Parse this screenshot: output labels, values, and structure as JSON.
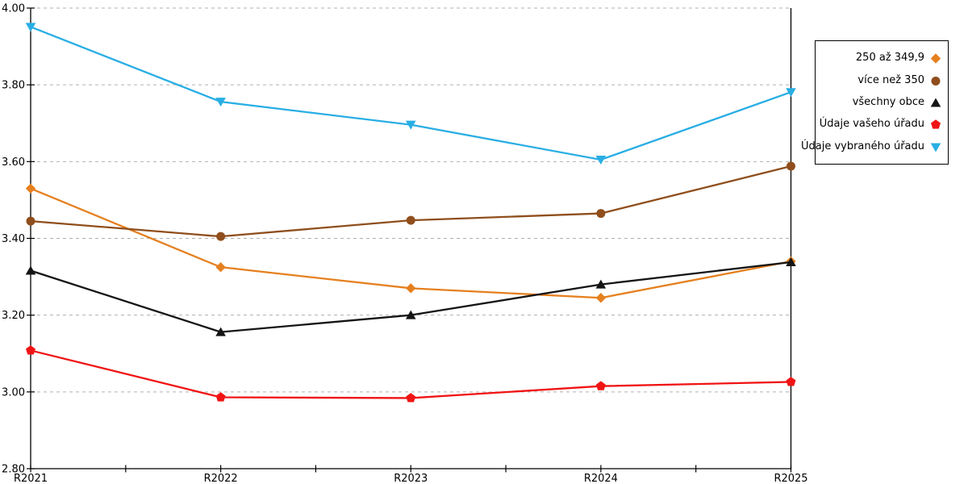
{
  "chart_data": {
    "type": "line",
    "title": "",
    "xlabel": "",
    "ylabel": "",
    "categories": [
      "R2021",
      "R2022",
      "R2023",
      "R2024",
      "R2025"
    ],
    "y_ticks": [
      "4.00",
      "3.80",
      "3.60",
      "3.40",
      "3.20",
      "3.00",
      "2.80"
    ],
    "ylim": [
      2.8,
      4.0
    ],
    "grid": "horizontal-dashed",
    "legend_position": "right-outside",
    "series": [
      {
        "name": "250 až 349,9",
        "marker": "diamond",
        "color": "#E5801F",
        "values": [
          3.53,
          3.325,
          3.27,
          3.245,
          3.34
        ]
      },
      {
        "name": "více než 350",
        "marker": "circle",
        "color": "#8F4E1C",
        "values": [
          3.445,
          3.405,
          3.447,
          3.465,
          3.588
        ]
      },
      {
        "name": "všechny obce",
        "marker": "triangle-up",
        "color": "#141414",
        "values": [
          3.316,
          3.156,
          3.2,
          3.28,
          3.338
        ]
      },
      {
        "name": "Údaje vašeho úřadu",
        "marker": "pentagon",
        "color": "#F01414",
        "values": [
          3.108,
          2.986,
          2.984,
          3.015,
          3.026
        ]
      },
      {
        "name": "Údaje vybraného úřadu",
        "marker": "triangle-down",
        "color": "#29AEE4",
        "values": [
          3.951,
          3.756,
          3.696,
          3.605,
          3.781
        ]
      }
    ]
  },
  "colors": {
    "background": "#FFFFFF",
    "axis": "#000000",
    "gridline": "#B0B0B0",
    "text": "#000000",
    "legend_border": "#000000"
  }
}
